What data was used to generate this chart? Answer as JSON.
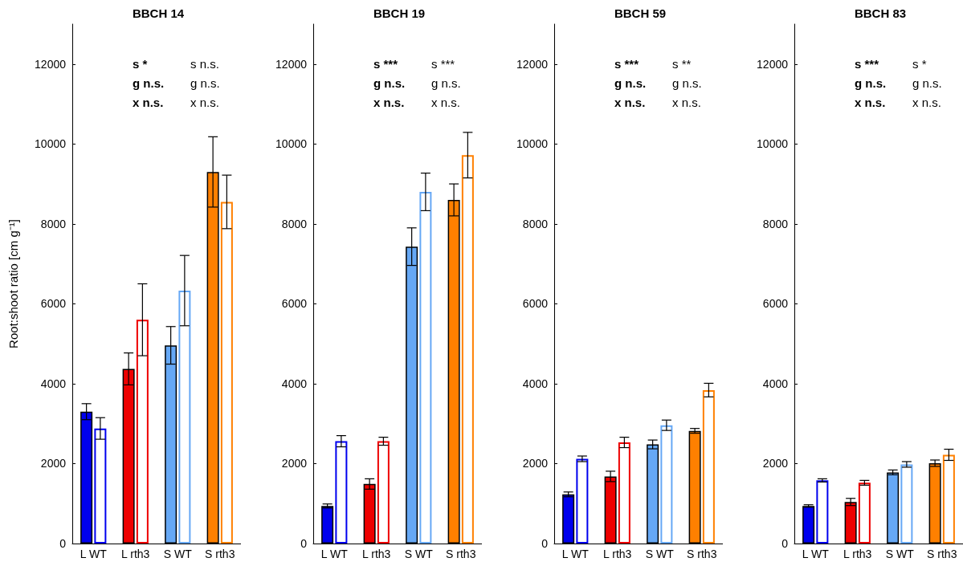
{
  "chart_data": [
    {
      "type": "bar",
      "title": "BBCH 14",
      "ylabel": "Root:shoot ratio [cm g⁻¹]",
      "categories": [
        "L WT",
        "L rth3",
        "S WT",
        "S rth3"
      ],
      "ylim": [
        0,
        13000
      ],
      "yticks": [
        0,
        2000,
        4000,
        6000,
        8000,
        10000,
        12000
      ],
      "series": [
        {
          "colors": [
            "#0000ee",
            "#ee0000",
            "#66a8f5",
            "#ff8000"
          ],
          "values": [
            3300,
            4370,
            4960,
            9300
          ],
          "errors": [
            200,
            400,
            470,
            880
          ]
        },
        {
          "colors": [
            "#0000ee",
            "#ee0000",
            "#66a8f5",
            "#ff8000"
          ],
          "values": [
            2880,
            5600,
            6330,
            8550
          ],
          "errors": [
            270,
            900,
            880,
            670
          ]
        }
      ],
      "annotations": [
        "s *",
        "g n.s.",
        "x n.s.",
        "s n.s.",
        "g n.s.",
        "x n.s."
      ]
    },
    {
      "type": "bar",
      "title": "BBCH 19",
      "categories": [
        "L WT",
        "L rth3",
        "S WT",
        "S rth3"
      ],
      "ylim": [
        0,
        13000
      ],
      "yticks": [
        0,
        2000,
        4000,
        6000,
        8000,
        10000,
        12000
      ],
      "series": [
        {
          "colors": [
            "#0000ee",
            "#ee0000",
            "#66a8f5",
            "#ff8000"
          ],
          "values": [
            940,
            1490,
            7430,
            8600
          ],
          "errors": [
            50,
            130,
            470,
            400
          ]
        },
        {
          "colors": [
            "#0000ee",
            "#ee0000",
            "#66a8f5",
            "#ff8000"
          ],
          "values": [
            2560,
            2560,
            8800,
            9720
          ],
          "errors": [
            140,
            100,
            470,
            570
          ]
        }
      ],
      "annotations": [
        "s ***",
        "g n.s.",
        "x n.s.",
        "s ***",
        "g n.s.",
        "x n.s."
      ]
    },
    {
      "type": "bar",
      "title": "BBCH 59",
      "categories": [
        "L WT",
        "L rth3",
        "S WT",
        "S rth3"
      ],
      "ylim": [
        0,
        13000
      ],
      "yticks": [
        0,
        2000,
        4000,
        6000,
        8000,
        10000,
        12000
      ],
      "series": [
        {
          "colors": [
            "#0000ee",
            "#ee0000",
            "#66a8f5",
            "#ff8000"
          ],
          "values": [
            1230,
            1680,
            2480,
            2820
          ],
          "errors": [
            60,
            130,
            110,
            60
          ]
        },
        {
          "colors": [
            "#0000ee",
            "#ee0000",
            "#66a8f5",
            "#ff8000"
          ],
          "values": [
            2120,
            2530,
            2960,
            3840
          ],
          "errors": [
            70,
            130,
            130,
            170
          ]
        }
      ],
      "annotations": [
        "s ***",
        "g n.s.",
        "x n.s.",
        "s **",
        "g n.s.",
        "x n.s."
      ]
    },
    {
      "type": "bar",
      "title": "BBCH 83",
      "categories": [
        "L WT",
        "L rth3",
        "S WT",
        "S rth3"
      ],
      "ylim": [
        0,
        13000
      ],
      "yticks": [
        0,
        2000,
        4000,
        6000,
        8000,
        10000,
        12000
      ],
      "series": [
        {
          "colors": [
            "#0000ee",
            "#ee0000",
            "#66a8f5",
            "#ff8000"
          ],
          "values": [
            940,
            1040,
            1780,
            2010
          ],
          "errors": [
            30,
            90,
            60,
            80
          ]
        },
        {
          "colors": [
            "#0000ee",
            "#ee0000",
            "#66a8f5",
            "#ff8000"
          ],
          "values": [
            1580,
            1520,
            1980,
            2220
          ],
          "errors": [
            40,
            60,
            70,
            140
          ]
        }
      ],
      "annotations": [
        "s ***",
        "g n.s.",
        "x n.s.",
        "s *",
        "g n.s.",
        "x n.s."
      ]
    }
  ]
}
